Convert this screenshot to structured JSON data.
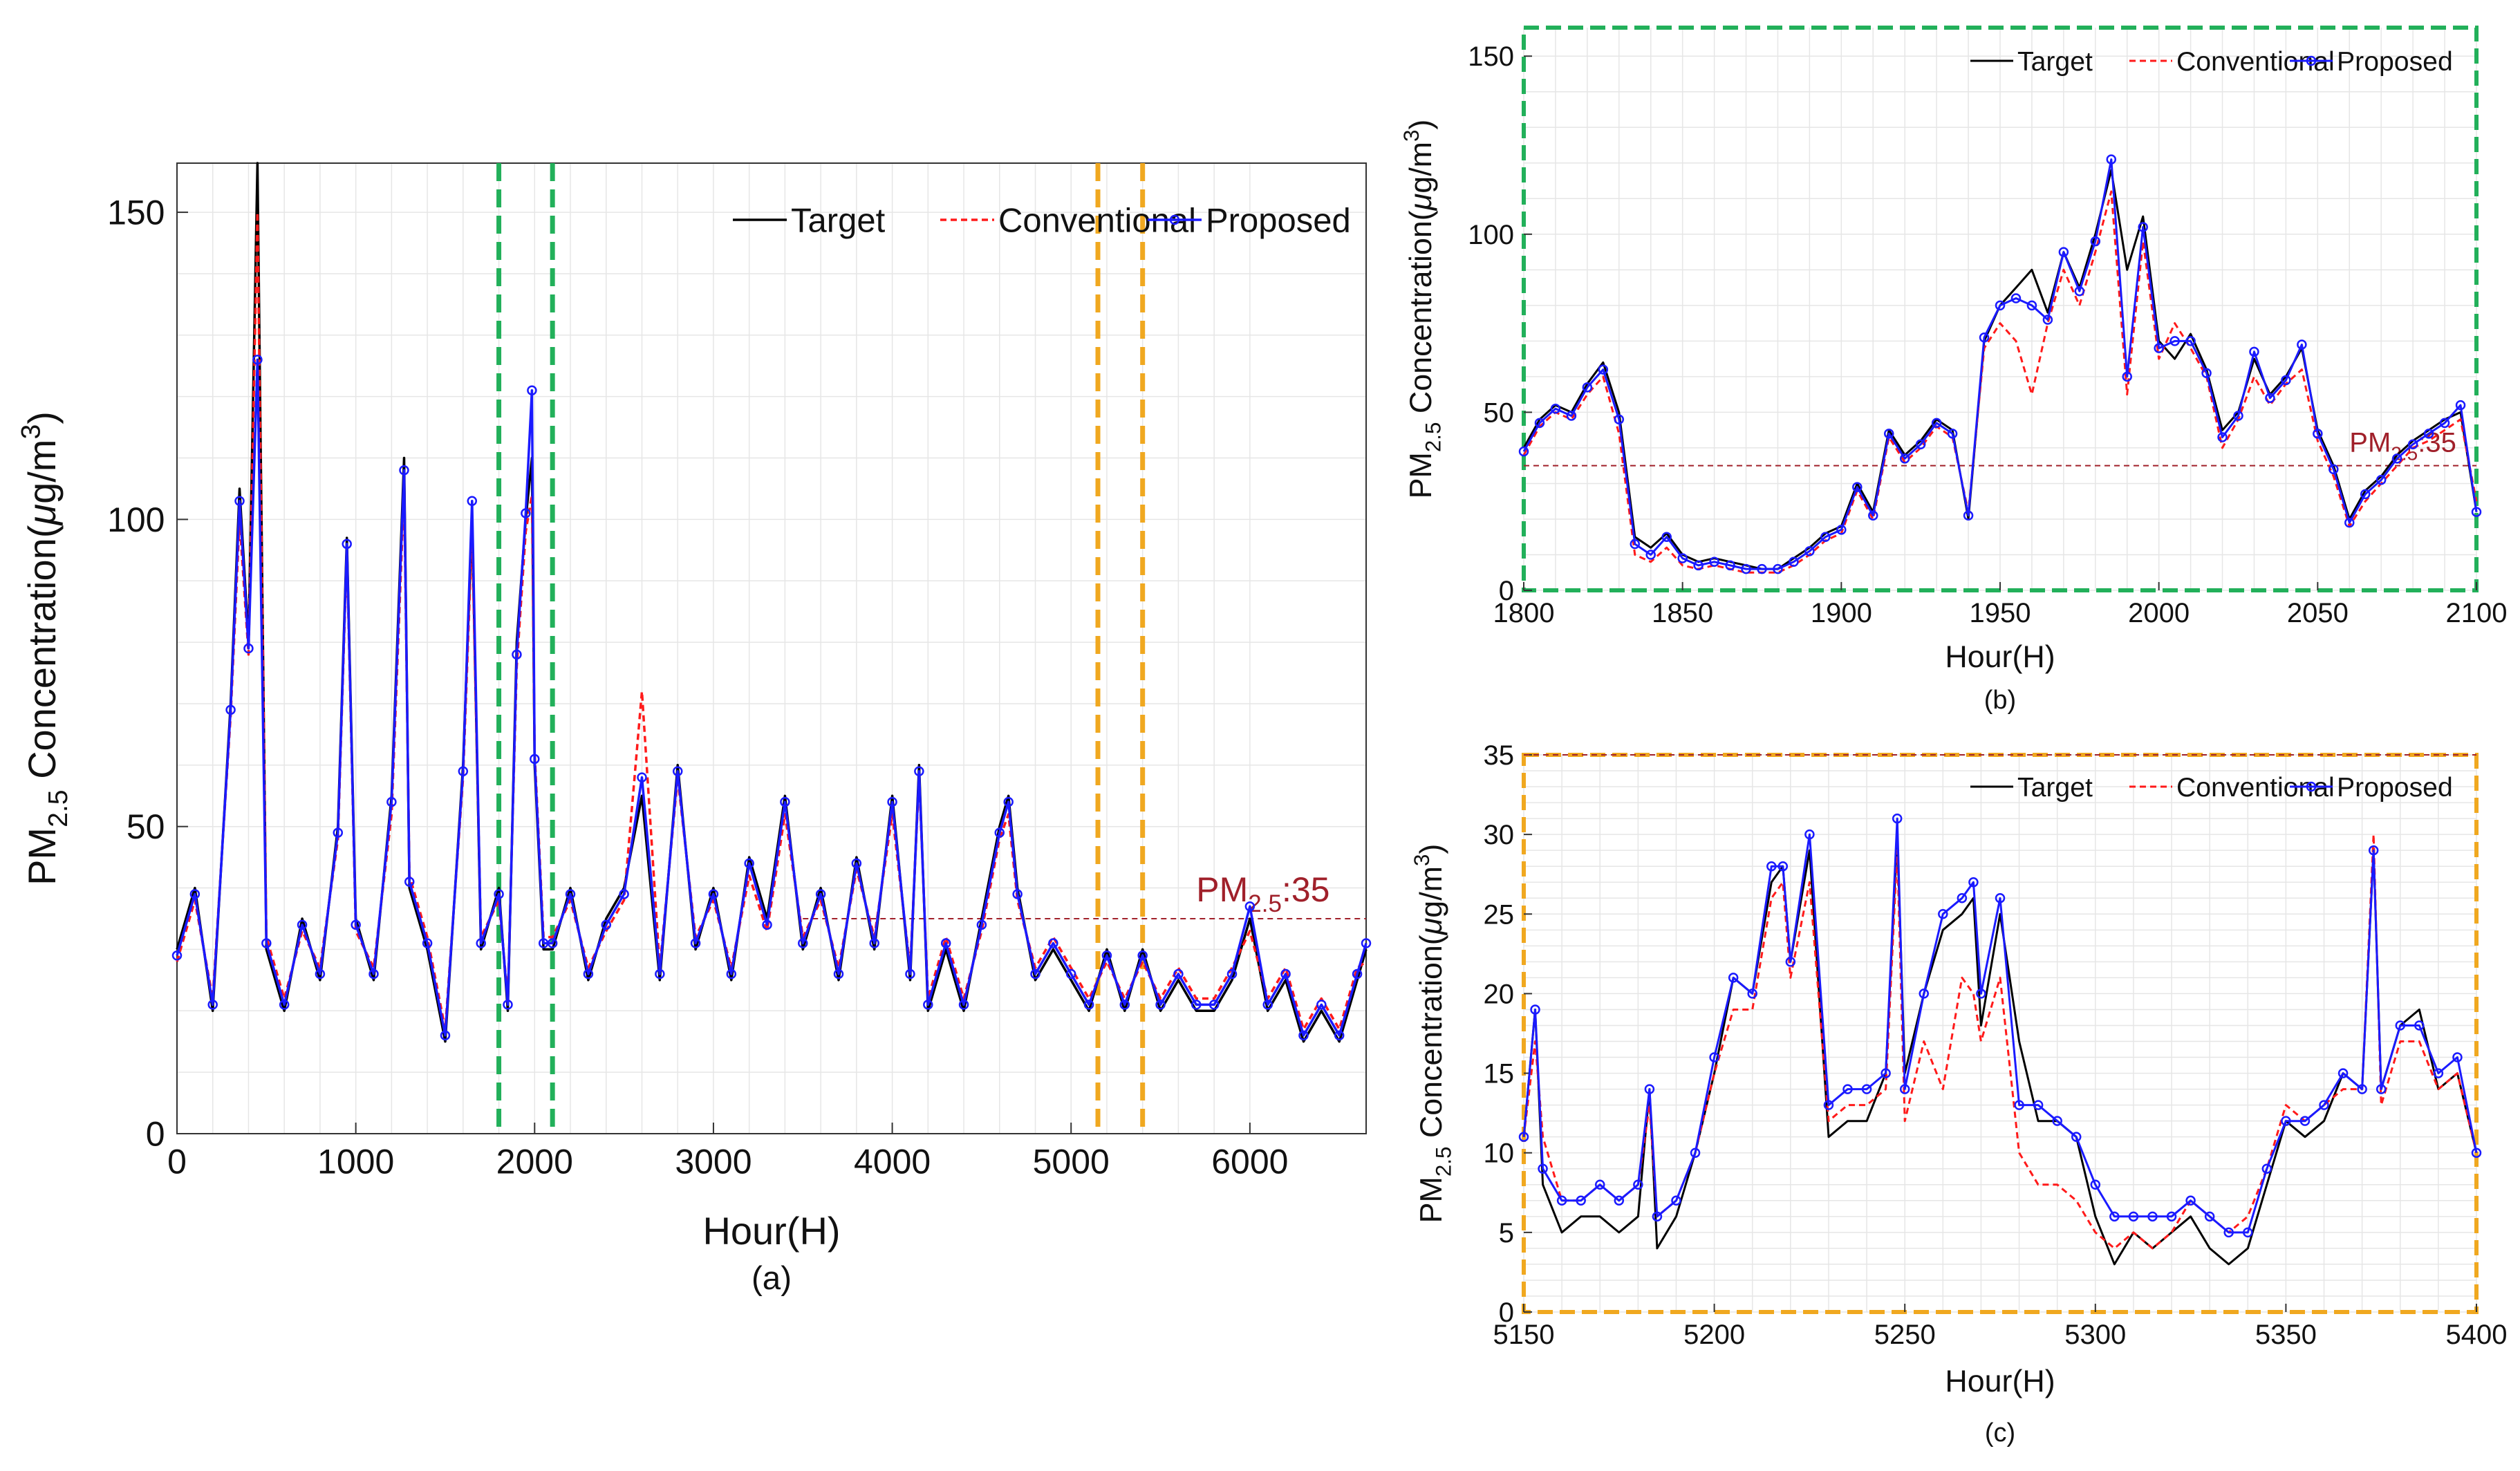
{
  "colors": {
    "target": "#000000",
    "conventional": "#ff1a1a",
    "proposed": "#1a1aff",
    "threshold": "#a0202a",
    "green_box": "#22b05a",
    "orange_box": "#f0a820",
    "grid": "#e6e6e6"
  },
  "common": {
    "xlabel": "Hour(H)",
    "ylabel_prefix": "PM",
    "ylabel_sub": "2.5",
    "ylabel_mid": " Concentration(",
    "ylabel_mu": "μ",
    "ylabel_unit": "g/m",
    "ylabel_sup": "3",
    "ylabel_end": ")",
    "legend": [
      "Target",
      "Conventional",
      "Proposed"
    ],
    "threshold_prefix": "PM",
    "threshold_sub": "2.5",
    "threshold_suffix": ":35",
    "threshold_value": 35
  },
  "chart_data": [
    {
      "type": "line",
      "caption": "(a)",
      "xlim": [
        0,
        6650
      ],
      "ylim": [
        0,
        158
      ],
      "xticks": [
        0,
        1000,
        2000,
        3000,
        4000,
        5000,
        6000
      ],
      "yticks": [
        0,
        50,
        100,
        150
      ],
      "grid": true,
      "legend_position": "top-right",
      "vlines": [
        {
          "x": 1800,
          "color": "green"
        },
        {
          "x": 2100,
          "color": "green"
        },
        {
          "x": 5150,
          "color": "orange"
        },
        {
          "x": 5400,
          "color": "orange"
        }
      ],
      "x": [
        0,
        100,
        200,
        300,
        350,
        400,
        450,
        500,
        600,
        700,
        800,
        900,
        950,
        1000,
        1100,
        1200,
        1270,
        1300,
        1400,
        1500,
        1600,
        1650,
        1700,
        1800,
        1850,
        1900,
        1950,
        1985,
        2000,
        2050,
        2100,
        2200,
        2300,
        2400,
        2500,
        2600,
        2700,
        2800,
        2900,
        3000,
        3100,
        3200,
        3300,
        3400,
        3500,
        3600,
        3700,
        3800,
        3900,
        4000,
        4100,
        4150,
        4200,
        4300,
        4400,
        4500,
        4600,
        4650,
        4700,
        4800,
        4900,
        5000,
        5100,
        5200,
        5300,
        5400,
        5500,
        5600,
        5700,
        5800,
        5900,
        6000,
        6100,
        6200,
        6300,
        6400,
        6500,
        6600,
        6650
      ],
      "series": [
        {
          "name": "Target",
          "values": [
            30,
            40,
            20,
            70,
            105,
            80,
            158,
            30,
            20,
            35,
            25,
            50,
            97,
            35,
            25,
            55,
            110,
            40,
            30,
            15,
            60,
            100,
            30,
            40,
            20,
            80,
            100,
            110,
            60,
            30,
            30,
            40,
            25,
            35,
            40,
            55,
            25,
            60,
            30,
            40,
            25,
            45,
            35,
            55,
            30,
            40,
            25,
            45,
            30,
            55,
            25,
            60,
            20,
            30,
            20,
            35,
            50,
            55,
            40,
            25,
            30,
            25,
            20,
            30,
            20,
            30,
            20,
            25,
            20,
            20,
            25,
            35,
            20,
            25,
            15,
            20,
            15,
            25,
            30
          ]
        },
        {
          "name": "Conventional",
          "values": [
            28,
            38,
            22,
            68,
            100,
            78,
            150,
            32,
            22,
            33,
            27,
            48,
            95,
            33,
            27,
            52,
            105,
            42,
            32,
            17,
            58,
            98,
            32,
            38,
            22,
            76,
            98,
            104,
            62,
            32,
            32,
            38,
            27,
            33,
            38,
            72,
            27,
            58,
            32,
            38,
            27,
            42,
            33,
            52,
            32,
            38,
            27,
            43,
            32,
            52,
            27,
            58,
            22,
            32,
            22,
            33,
            48,
            52,
            38,
            27,
            32,
            27,
            22,
            28,
            22,
            28,
            22,
            27,
            22,
            22,
            27,
            33,
            22,
            27,
            17,
            22,
            17,
            27,
            28
          ]
        },
        {
          "name": "Proposed",
          "values": [
            29,
            39,
            21,
            69,
            103,
            79,
            126,
            31,
            21,
            34,
            26,
            49,
            96,
            34,
            26,
            54,
            108,
            41,
            31,
            16,
            59,
            103,
            31,
            39,
            21,
            78,
            101,
            121,
            61,
            31,
            31,
            39,
            26,
            34,
            39,
            58,
            26,
            59,
            31,
            39,
            26,
            44,
            34,
            54,
            31,
            39,
            26,
            44,
            31,
            54,
            26,
            59,
            21,
            31,
            21,
            34,
            49,
            54,
            39,
            26,
            31,
            26,
            21,
            29,
            21,
            29,
            21,
            26,
            21,
            21,
            26,
            37,
            21,
            26,
            16,
            21,
            16,
            26,
            31
          ]
        }
      ]
    },
    {
      "type": "line",
      "caption": "(b)",
      "xlim": [
        1800,
        2100
      ],
      "ylim": [
        0,
        158
      ],
      "xticks": [
        1800,
        1850,
        1900,
        1950,
        2000,
        2050,
        2100
      ],
      "yticks": [
        0,
        50,
        100,
        150
      ],
      "grid": true,
      "legend_position": "top-right",
      "border_color": "green",
      "x": [
        1800,
        1805,
        1810,
        1815,
        1820,
        1825,
        1830,
        1835,
        1840,
        1845,
        1850,
        1855,
        1860,
        1865,
        1870,
        1875,
        1880,
        1885,
        1890,
        1895,
        1900,
        1905,
        1910,
        1915,
        1920,
        1925,
        1930,
        1935,
        1940,
        1945,
        1950,
        1955,
        1960,
        1965,
        1970,
        1975,
        1980,
        1985,
        1990,
        1995,
        2000,
        2005,
        2010,
        2015,
        2020,
        2025,
        2030,
        2035,
        2040,
        2045,
        2050,
        2055,
        2060,
        2065,
        2070,
        2075,
        2080,
        2085,
        2090,
        2095,
        2100
      ],
      "series": [
        {
          "name": "Target",
          "values": [
            40,
            48,
            52,
            50,
            58,
            64,
            50,
            15,
            12,
            16,
            10,
            8,
            9,
            8,
            7,
            6,
            6,
            9,
            12,
            16,
            18,
            30,
            22,
            45,
            38,
            42,
            48,
            45,
            20,
            70,
            80,
            85,
            90,
            78,
            95,
            85,
            100,
            118,
            90,
            105,
            70,
            65,
            72,
            62,
            45,
            50,
            65,
            55,
            60,
            68,
            45,
            35,
            20,
            28,
            32,
            38,
            42,
            45,
            48,
            50,
            22
          ]
        },
        {
          "name": "Conventional",
          "values": [
            38,
            46,
            50,
            48,
            55,
            60,
            44,
            10,
            8,
            12,
            7,
            6,
            7,
            6,
            5,
            5,
            5,
            7,
            10,
            14,
            16,
            28,
            20,
            43,
            36,
            40,
            46,
            43,
            22,
            68,
            75,
            70,
            55,
            75,
            90,
            80,
            95,
            112,
            55,
            98,
            65,
            75,
            68,
            60,
            40,
            48,
            60,
            52,
            58,
            62,
            42,
            32,
            18,
            25,
            30,
            35,
            40,
            42,
            45,
            48,
            25
          ]
        },
        {
          "name": "Proposed",
          "values": [
            39,
            47,
            51,
            49,
            57,
            62,
            48,
            13,
            10,
            15,
            9,
            7,
            8,
            7,
            6,
            6,
            6,
            8,
            11,
            15,
            17,
            29,
            21,
            44,
            37,
            41,
            47,
            44,
            21,
            71,
            80,
            82,
            80,
            76,
            95,
            84,
            98,
            121,
            60,
            102,
            68,
            70,
            70,
            61,
            43,
            49,
            67,
            54,
            59,
            69,
            44,
            34,
            19,
            27,
            31,
            37,
            41,
            44,
            47,
            52,
            22
          ]
        }
      ]
    },
    {
      "type": "line",
      "caption": "(c)",
      "xlim": [
        5150,
        5400
      ],
      "ylim": [
        0,
        35
      ],
      "xticks": [
        5150,
        5200,
        5250,
        5300,
        5350,
        5400
      ],
      "yticks": [
        0,
        5,
        10,
        15,
        20,
        25,
        30,
        35
      ],
      "grid": true,
      "legend_position": "top-right",
      "border_color": "orange",
      "x": [
        5150,
        5153,
        5155,
        5160,
        5165,
        5170,
        5175,
        5180,
        5183,
        5185,
        5190,
        5195,
        5200,
        5205,
        5210,
        5215,
        5218,
        5220,
        5225,
        5230,
        5235,
        5240,
        5245,
        5248,
        5250,
        5255,
        5260,
        5265,
        5268,
        5270,
        5275,
        5280,
        5285,
        5290,
        5295,
        5300,
        5305,
        5310,
        5315,
        5320,
        5325,
        5330,
        5335,
        5340,
        5345,
        5350,
        5355,
        5360,
        5365,
        5370,
        5373,
        5375,
        5380,
        5385,
        5390,
        5395,
        5400
      ],
      "series": [
        {
          "name": "Target",
          "values": [
            11,
            19,
            8,
            5,
            6,
            6,
            5,
            6,
            14,
            4,
            6,
            10,
            15,
            21,
            20,
            27,
            28,
            22,
            29,
            11,
            12,
            12,
            15,
            30,
            15,
            20,
            24,
            25,
            26,
            18,
            25,
            17,
            12,
            12,
            11,
            6,
            3,
            5,
            4,
            5,
            6,
            4,
            3,
            4,
            8,
            12,
            11,
            12,
            15,
            14,
            29,
            14,
            18,
            19,
            14,
            15,
            10
          ]
        },
        {
          "name": "Conventional",
          "values": [
            11,
            17,
            11,
            7,
            7,
            8,
            7,
            8,
            13,
            6,
            7,
            10,
            15,
            19,
            19,
            26,
            27,
            21,
            27,
            12,
            13,
            13,
            14,
            29,
            12,
            17,
            14,
            21,
            20,
            17,
            21,
            10,
            8,
            8,
            7,
            5,
            4,
            5,
            4,
            5,
            7,
            6,
            5,
            6,
            9,
            13,
            12,
            13,
            14,
            14,
            30,
            13,
            17,
            17,
            14,
            15,
            10
          ]
        },
        {
          "name": "Proposed",
          "values": [
            11,
            19,
            9,
            7,
            7,
            8,
            7,
            8,
            14,
            6,
            7,
            10,
            16,
            21,
            20,
            28,
            28,
            22,
            30,
            13,
            14,
            14,
            15,
            31,
            14,
            20,
            25,
            26,
            27,
            20,
            26,
            13,
            13,
            12,
            11,
            8,
            6,
            6,
            6,
            6,
            7,
            6,
            5,
            5,
            9,
            12,
            12,
            13,
            15,
            14,
            29,
            14,
            18,
            18,
            15,
            16,
            10
          ]
        }
      ]
    }
  ]
}
